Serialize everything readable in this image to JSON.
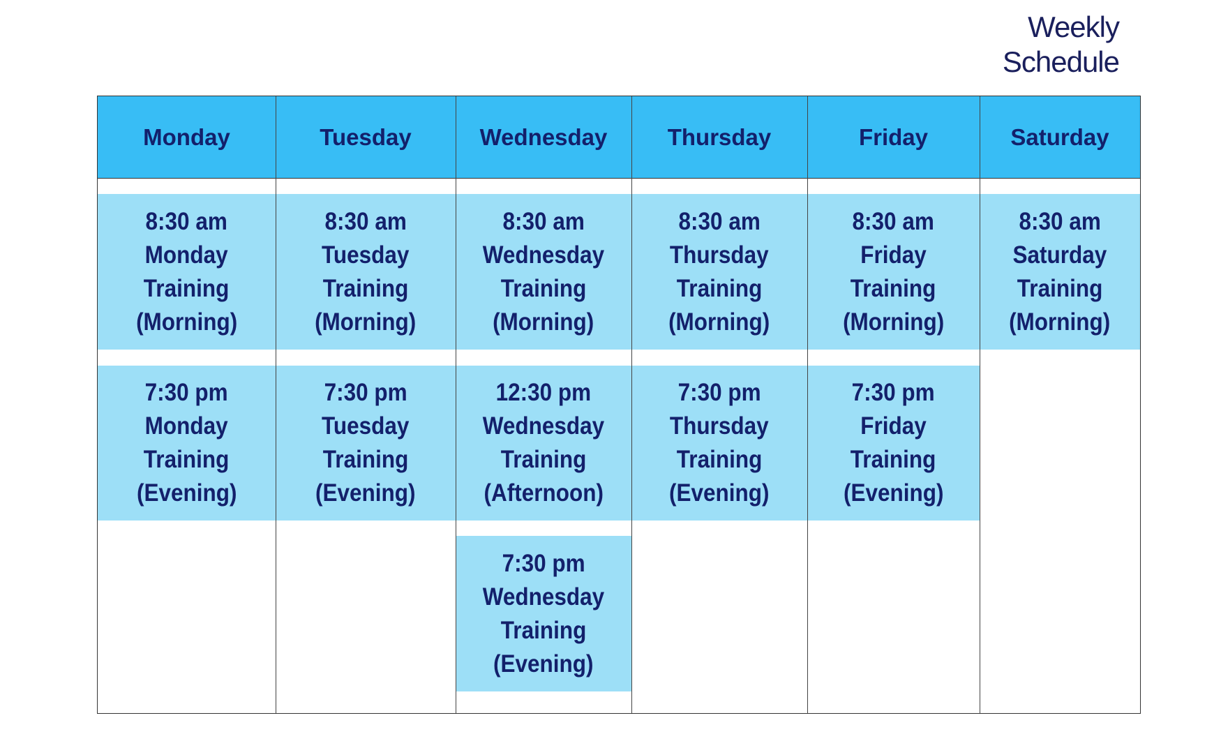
{
  "title": {
    "line1": "Weekly",
    "line2": "Schedule"
  },
  "colors": {
    "header": "#38bdf5",
    "cell": "#9ddff7",
    "text": "#13206b"
  },
  "days": [
    "Monday",
    "Tuesday",
    "Wednesday",
    "Thursday",
    "Friday",
    "Saturday"
  ],
  "sessions": {
    "row1": [
      [
        "8:30 am",
        "Monday",
        "Training",
        "(Morning)"
      ],
      [
        "8:30 am",
        "Tuesday",
        "Training",
        "(Morning)"
      ],
      [
        "8:30 am",
        "Wednesday",
        "Training",
        "(Morning)"
      ],
      [
        "8:30 am",
        "Thursday",
        "Training",
        "(Morning)"
      ],
      [
        "8:30 am",
        "Friday",
        "Training",
        "(Morning)"
      ],
      [
        "8:30 am",
        "Saturday",
        "Training",
        "(Morning)"
      ]
    ],
    "row2": [
      [
        "7:30 pm",
        "Monday",
        "Training",
        "(Evening)"
      ],
      [
        "7:30 pm",
        "Tuesday",
        "Training",
        "(Evening)"
      ],
      [
        "12:30 pm",
        "Wednesday",
        "Training",
        "(Afternoon)"
      ],
      [
        "7:30 pm",
        "Thursday",
        "Training",
        "(Evening)"
      ],
      [
        "7:30 pm",
        "Friday",
        "Training",
        "(Evening)"
      ],
      []
    ],
    "row3": [
      [],
      [],
      [
        "7:30 pm",
        "Wednesday",
        "Training",
        "(Evening)"
      ],
      [],
      [],
      []
    ]
  }
}
